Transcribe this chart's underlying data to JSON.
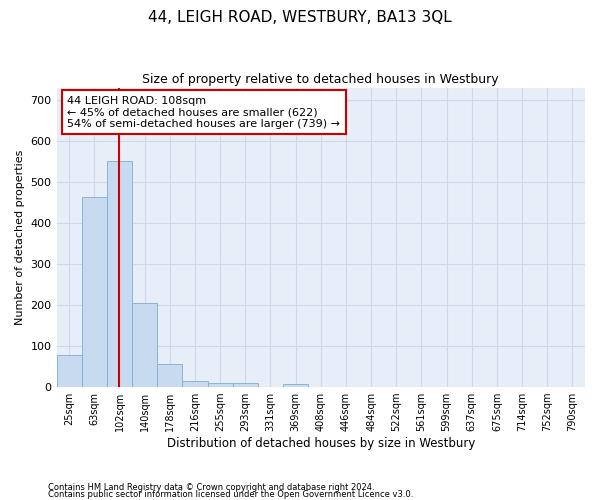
{
  "title": "44, LEIGH ROAD, WESTBURY, BA13 3QL",
  "subtitle": "Size of property relative to detached houses in Westbury",
  "xlabel": "Distribution of detached houses by size in Westbury",
  "ylabel": "Number of detached properties",
  "footnote1": "Contains HM Land Registry data © Crown copyright and database right 2024.",
  "footnote2": "Contains public sector information licensed under the Open Government Licence v3.0.",
  "bar_color": "#c8daf0",
  "bar_edge_color": "#7bafd4",
  "grid_color": "#d0d8e8",
  "bg_color": "#e8eef8",
  "vline_color": "#cc0000",
  "annotation_box_color": "#cc0000",
  "categories": [
    "25sqm",
    "63sqm",
    "102sqm",
    "140sqm",
    "178sqm",
    "216sqm",
    "255sqm",
    "293sqm",
    "331sqm",
    "369sqm",
    "408sqm",
    "446sqm",
    "484sqm",
    "522sqm",
    "561sqm",
    "599sqm",
    "637sqm",
    "675sqm",
    "714sqm",
    "752sqm",
    "790sqm"
  ],
  "values": [
    78,
    463,
    551,
    206,
    57,
    15,
    9,
    9,
    0,
    8,
    0,
    0,
    0,
    0,
    0,
    0,
    0,
    0,
    0,
    0,
    0
  ],
  "ylim": [
    0,
    730
  ],
  "yticks": [
    0,
    100,
    200,
    300,
    400,
    500,
    600,
    700
  ],
  "vline_x": 2,
  "annotation_line1": "44 LEIGH ROAD: 108sqm",
  "annotation_line2": "← 45% of detached houses are smaller (622)",
  "annotation_line3": "54% of semi-detached houses are larger (739) →",
  "property_size_bin": 2
}
